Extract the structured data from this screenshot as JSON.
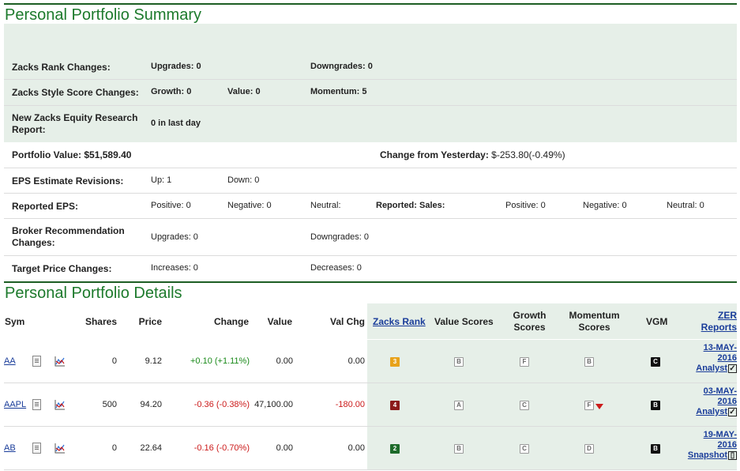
{
  "summary": {
    "title": "Personal Portfolio Summary",
    "rank_changes": {
      "label": "Zacks Rank Changes:",
      "upgrades": "Upgrades: 0",
      "downgrades": "Downgrades: 0"
    },
    "style_changes": {
      "label": "Zacks Style Score Changes:",
      "growth": "Growth: 0",
      "value": "Value: 0",
      "momentum": "Momentum: 5"
    },
    "equity_research": {
      "label": "New Zacks Equity Research Report:",
      "value": "0 in last day"
    },
    "portfolio_value": {
      "label": "Portfolio Value:",
      "value": "$51,589.40",
      "change_label": "Change from Yesterday:",
      "change_value": "$-253.80(-0.49%)"
    },
    "eps_revisions": {
      "label": "EPS Estimate Revisions:",
      "up": "Up: 1",
      "down": "Down: 0"
    },
    "reported_eps": {
      "label": "Reported EPS:",
      "positive": "Positive: 0",
      "negative": "Negative: 0",
      "neutral": "Neutral:",
      "sales_label": "Reported: Sales:",
      "sales_positive": "Positive: 0",
      "sales_negative": "Negative: 0",
      "sales_neutral": "Neutral: 0"
    },
    "broker": {
      "label": "Broker Recommendation Changes:",
      "upgrades": "Upgrades: 0",
      "downgrades": "Downgrades: 0"
    },
    "target_price": {
      "label": "Target Price Changes:",
      "increases": "Increases: 0",
      "decreases": "Decreases: 0"
    }
  },
  "details": {
    "title": "Personal Portfolio Details",
    "headers": {
      "sym": "Sym",
      "shares": "Shares",
      "price": "Price",
      "change": "Change",
      "value": "Value",
      "val_chg": "Val Chg",
      "zacks_rank": "Zacks Rank",
      "value_scores": "Value Scores",
      "growth_scores_1": "Growth",
      "growth_scores_2": "Scores",
      "momentum_scores_1": "Momentum",
      "momentum_scores_2": "Scores",
      "vgm": "VGM",
      "zer_1": "ZER",
      "zer_2": "Reports"
    },
    "rows": [
      {
        "sym": "AA",
        "shares": "0",
        "price": "9.12",
        "change": "+0.10 (+1.11%)",
        "value": "0.00",
        "val_chg": "0.00",
        "rank": "3",
        "rank_color": "#e8a21a",
        "value_score": "B",
        "growth_score": "F",
        "momentum_score": "B",
        "vgm": "C",
        "zer_date_1": "13-MAY-",
        "zer_date_2": "2016",
        "zer_type": "Analyst"
      },
      {
        "sym": "AAPL",
        "shares": "500",
        "price": "94.20",
        "change": "-0.36 (-0.38%)",
        "value": "47,100.00",
        "val_chg": "-180.00",
        "rank": "4",
        "rank_color": "#8b1a1a",
        "value_score": "A",
        "growth_score": "C",
        "momentum_score": "F",
        "vgm": "B",
        "zer_date_1": "03-MAY-",
        "zer_date_2": "2016",
        "zer_type": "Analyst"
      },
      {
        "sym": "AB",
        "shares": "0",
        "price": "22.64",
        "change": "-0.16 (-0.70%)",
        "value": "0.00",
        "val_chg": "0.00",
        "rank": "2",
        "rank_color": "#1d6b2a",
        "value_score": "B",
        "growth_score": "C",
        "momentum_score": "D",
        "vgm": "B",
        "zer_date_1": "19-MAY-",
        "zer_date_2": "2016",
        "zer_type": "Snapshot"
      }
    ]
  },
  "colors": {
    "brand_green": "#1d7a2c",
    "shade": "#e6efe8",
    "positive": "#1a8a1a",
    "negative": "#cc1b1b",
    "link": "#1a3d9a"
  },
  "icons": {
    "notes": "document-icon",
    "chart": "chart-icon",
    "analyst": "checkbox-icon",
    "snapshot": "snapshot-icon",
    "momentum_down": "down-triangle-icon"
  }
}
